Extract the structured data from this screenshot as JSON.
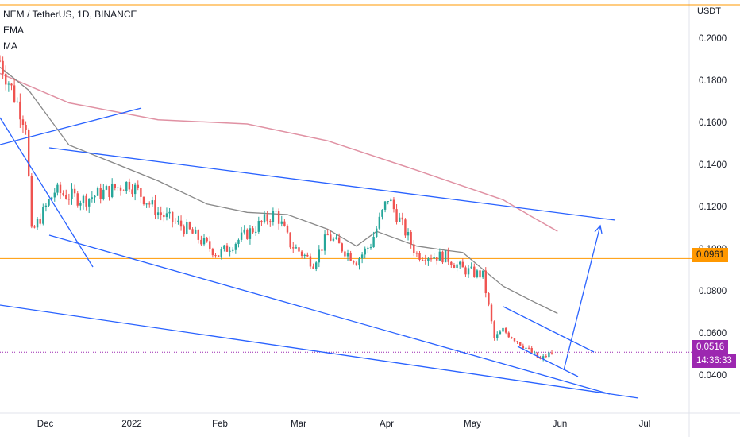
{
  "legend": {
    "title": "NEM / TetherUS, 1D, BINANCE",
    "ema": "EMA",
    "ma": "MA"
  },
  "axis": {
    "unit": "USDT",
    "y_ticks": [
      "0.2000",
      "0.1800",
      "0.1600",
      "0.1400",
      "0.1200",
      "0.1000",
      "0.0800",
      "0.0600",
      "0.0400"
    ],
    "x_ticks": [
      "Dec",
      "2022",
      "Feb",
      "Mar",
      "Apr",
      "May",
      "Jun",
      "Jul"
    ]
  },
  "badges": {
    "level_price": "0.0961",
    "last_price": "0.0516",
    "countdown": "14:36:33"
  },
  "colors": {
    "up": "#26a69a",
    "down": "#ef5350",
    "trendline": "#2962ff",
    "ema": "#e091a3",
    "ma": "#888888",
    "level_line": "#ff9800",
    "last_price": "#9c27b0"
  },
  "chart_data": {
    "type": "line",
    "title": "NEM / TetherUS, 1D, BINANCE",
    "ylabel": "USDT",
    "ylim": [
      0.028,
      0.214
    ],
    "x_range": [
      "2021-11-21",
      "2022-07-20"
    ],
    "close_series": {
      "name": "",
      "x": [
        "2021-11-21",
        "2021-11-30",
        "2021-12-02",
        "2021-12-10",
        "2021-12-20",
        "2022-01-05",
        "2022-01-15",
        "2022-01-25",
        "2022-02-05",
        "2022-02-15",
        "2022-02-25",
        "2022-03-02",
        "2022-03-10",
        "2022-03-15",
        "2022-03-25",
        "2022-03-30",
        "2022-04-05",
        "2022-04-15",
        "2022-04-25",
        "2022-05-01",
        "2022-05-08",
        "2022-05-12",
        "2022-05-15",
        "2022-05-20",
        "2022-05-28",
        "2022-06-01"
      ],
      "values": [
        0.19,
        0.16,
        0.108,
        0.128,
        0.124,
        0.132,
        0.118,
        0.11,
        0.098,
        0.108,
        0.118,
        0.103,
        0.094,
        0.107,
        0.095,
        0.103,
        0.125,
        0.098,
        0.097,
        0.091,
        0.088,
        0.058,
        0.062,
        0.057,
        0.048,
        0.0516
      ]
    },
    "ema": {
      "name": "EMA",
      "x": [
        "2021-11-21",
        "2021-12-15",
        "2022-01-15",
        "2022-02-15",
        "2022-03-15",
        "2022-04-15",
        "2022-05-15",
        "2022-05-25",
        "2022-06-03"
      ],
      "values": [
        0.184,
        0.17,
        0.162,
        0.16,
        0.152,
        0.138,
        0.124,
        0.116,
        0.109
      ]
    },
    "ma": {
      "name": "MA",
      "x": [
        "2021-11-21",
        "2021-12-01",
        "2021-12-15",
        "2022-01-15",
        "2022-02-01",
        "2022-02-15",
        "2022-03-01",
        "2022-03-15",
        "2022-03-25",
        "2022-04-01",
        "2022-04-15",
        "2022-04-25",
        "2022-05-01",
        "2022-05-15",
        "2022-05-25",
        "2022-06-03"
      ],
      "values": [
        0.187,
        0.176,
        0.15,
        0.133,
        0.122,
        0.118,
        0.117,
        0.11,
        0.102,
        0.109,
        0.102,
        0.1,
        0.099,
        0.083,
        0.076,
        0.07
      ]
    },
    "horizontal_level": 0.0961,
    "last_price": 0.0516
  }
}
